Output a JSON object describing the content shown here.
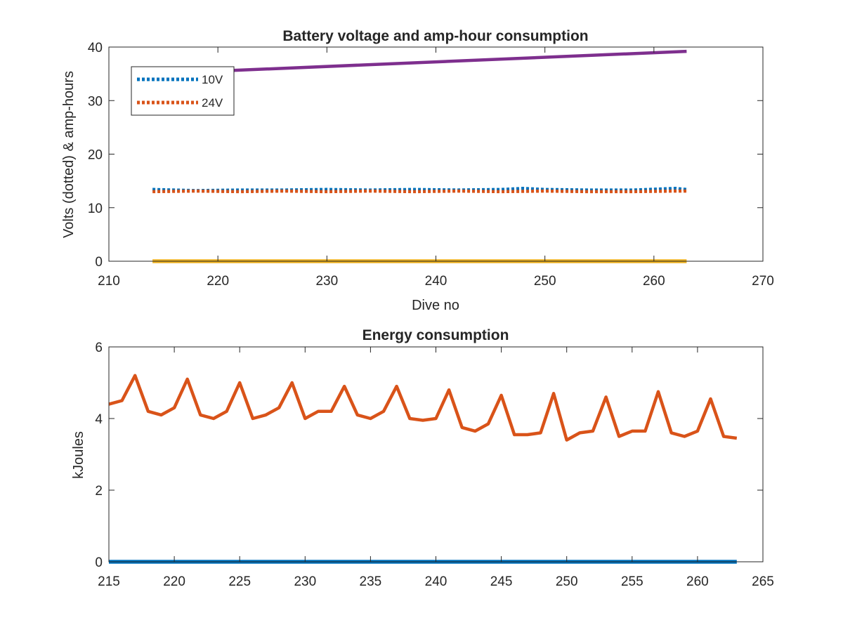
{
  "chart_data": [
    {
      "type": "line",
      "title": "Battery voltage and amp-hour consumption",
      "xlabel": "Dive no",
      "ylabel": "Volts (dotted) & amp-hours",
      "xlim": [
        210,
        270
      ],
      "ylim": [
        0,
        40
      ],
      "xticks": [
        "210",
        "220",
        "230",
        "240",
        "250",
        "260",
        "270"
      ],
      "yticks": [
        "0",
        "10",
        "20",
        "30",
        "40"
      ],
      "legend_position": "top-left",
      "series": [
        {
          "name": "10V",
          "style": "dotted",
          "color": "#0072BD",
          "x": [
            214,
            218,
            222,
            226,
            230,
            234,
            238,
            242,
            246,
            248,
            250,
            254,
            258,
            262,
            263
          ],
          "y": [
            13.4,
            13.2,
            13.3,
            13.3,
            13.4,
            13.3,
            13.4,
            13.3,
            13.4,
            13.6,
            13.4,
            13.3,
            13.3,
            13.6,
            13.4
          ]
        },
        {
          "name": "24V",
          "style": "dotted",
          "color": "#D95319",
          "x": [
            214,
            218,
            222,
            226,
            230,
            234,
            238,
            242,
            246,
            250,
            254,
            258,
            262,
            263
          ],
          "y": [
            13.0,
            13.1,
            13.0,
            13.1,
            13.0,
            13.1,
            13.0,
            13.1,
            13.0,
            13.1,
            13.0,
            13.0,
            13.1,
            13.1
          ]
        },
        {
          "style": "solid",
          "color": "#EDB120",
          "x": [
            214,
            263
          ],
          "y": [
            0,
            0
          ]
        },
        {
          "style": "solid",
          "color": "#7E2F8E",
          "x": [
            214,
            263
          ],
          "y": [
            35.0,
            39.2
          ]
        }
      ]
    },
    {
      "type": "line",
      "title": "Energy consumption",
      "xlabel": "",
      "ylabel": "kJoules",
      "xlim": [
        215,
        265
      ],
      "ylim": [
        0,
        6
      ],
      "xticks": [
        "215",
        "220",
        "225",
        "230",
        "235",
        "240",
        "245",
        "250",
        "255",
        "260",
        "265"
      ],
      "yticks": [
        "0",
        "2",
        "4",
        "6"
      ],
      "series": [
        {
          "style": "solid",
          "color": "#D95319",
          "x": [
            215,
            216,
            217,
            218,
            219,
            220,
            221,
            222,
            223,
            224,
            225,
            226,
            227,
            228,
            229,
            230,
            231,
            232,
            233,
            234,
            235,
            236,
            237,
            238,
            239,
            240,
            241,
            242,
            243,
            244,
            245,
            246,
            247,
            248,
            249,
            250,
            251,
            252,
            253,
            254,
            255,
            256,
            257,
            258,
            259,
            260,
            261,
            262,
            263
          ],
          "y": [
            4.4,
            4.5,
            5.2,
            4.2,
            4.1,
            4.3,
            5.1,
            4.1,
            4.0,
            4.2,
            5.0,
            4.0,
            4.1,
            4.3,
            5.0,
            4.0,
            4.2,
            4.2,
            4.9,
            4.1,
            4.0,
            4.2,
            4.9,
            4.0,
            3.95,
            4.0,
            4.8,
            3.75,
            3.65,
            3.85,
            4.65,
            3.55,
            3.55,
            3.6,
            4.7,
            3.4,
            3.6,
            3.65,
            4.6,
            3.5,
            3.65,
            3.65,
            4.75,
            3.6,
            3.5,
            3.65,
            4.55,
            3.5,
            3.45
          ]
        },
        {
          "style": "solid",
          "color": "#0072BD",
          "x": [
            215,
            263
          ],
          "y": [
            0,
            0
          ]
        }
      ]
    }
  ]
}
